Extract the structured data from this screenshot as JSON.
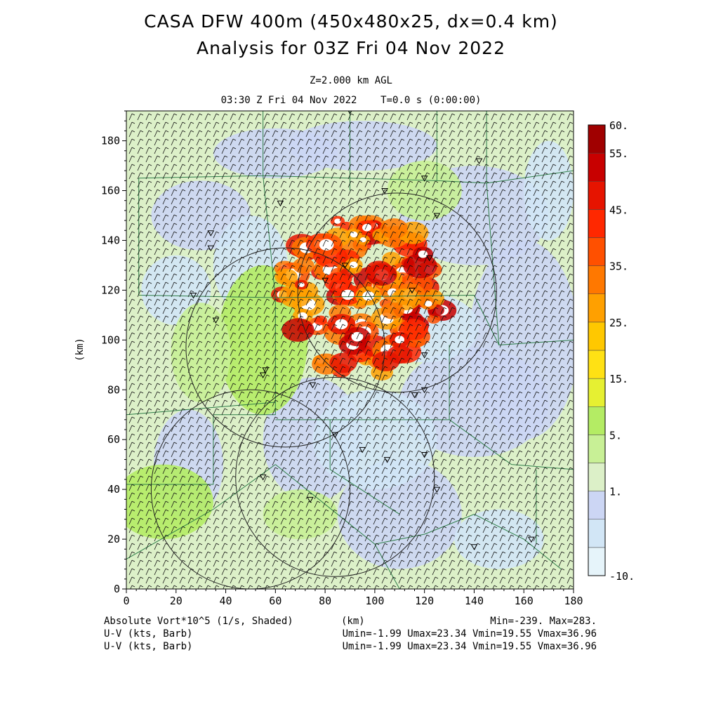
{
  "header": {
    "title": "CASA DFW 400m (450x480x25, dx=0.4 km)",
    "subtitle": "Analysis for 03Z Fri 04 Nov 2022",
    "level": "Z=2.000 km AGL",
    "time": "03:30 Z Fri 04 Nov 2022    T=0.0 s (0:00:00)"
  },
  "footer": {
    "line1_left": "Absolute Vort*10^5 (1/s, Shaded)",
    "line1_mid": "(km)",
    "line1_right": "Min=-239. Max=283.",
    "line2_left": "U-V (kts, Barb)",
    "line2_right": "Umin=-1.99 Umax=23.34 Vmin=19.55 Vmax=36.96",
    "line3_left": "U-V (kts, Barb)",
    "line3_right": "Umin=-1.99 Umax=23.34 Vmin=19.55 Vmax=36.96"
  },
  "chart_data": {
    "type": "heatmap",
    "xlabel": "(km)",
    "ylabel": "(km)",
    "xlim": [
      0,
      180
    ],
    "ylim": [
      0,
      192
    ],
    "xticks": [
      0,
      20,
      40,
      60,
      80,
      100,
      120,
      140,
      160,
      180
    ],
    "yticks": [
      0,
      20,
      40,
      60,
      80,
      100,
      120,
      140,
      160,
      180
    ],
    "colorbar": {
      "levels": [
        -10,
        1,
        5,
        15,
        25,
        35,
        45,
        55,
        60
      ],
      "labels": [
        "60.",
        "55.",
        "45.",
        "35.",
        "25.",
        "15.",
        "5.",
        "1.",
        "-10."
      ],
      "colors": [
        "#e6f4fa",
        "#d2e6f6",
        "#ccd6f4",
        "#dcf0c8",
        "#c8f096",
        "#b4ec64",
        "#e6f032",
        "#ffe114",
        "#ffc800",
        "#ffa000",
        "#ff7800",
        "#ff5000",
        "#ff2800",
        "#e61400",
        "#c80000",
        "#a00000"
      ]
    },
    "vorticity_regions": [
      {
        "x": 90,
        "y": 120,
        "rx": 34,
        "ry": 32,
        "level": "high",
        "max": 283
      },
      {
        "x": 95,
        "y": 100,
        "rx": 25,
        "ry": 10,
        "level": "high"
      },
      {
        "x": 55,
        "y": 100,
        "rx": 18,
        "ry": 30,
        "level": "moderate"
      },
      {
        "x": 15,
        "y": 35,
        "rx": 20,
        "ry": 15,
        "level": "moderate"
      },
      {
        "x": 100,
        "y": 70,
        "rx": 30,
        "ry": 35,
        "level": "low"
      }
    ],
    "radar_rings": [
      {
        "x": 109,
        "y": 119,
        "r": 40
      },
      {
        "x": 64,
        "y": 97,
        "r": 40
      },
      {
        "x": 50,
        "y": 40,
        "r": 40
      },
      {
        "x": 84,
        "y": 45,
        "r": 40
      }
    ],
    "wind": {
      "u_min": -1.99,
      "u_max": 23.34,
      "v_min": 19.55,
      "v_max": 36.96,
      "units": "kts"
    },
    "stats": {
      "vort_min": -239,
      "vort_max": 283
    }
  }
}
